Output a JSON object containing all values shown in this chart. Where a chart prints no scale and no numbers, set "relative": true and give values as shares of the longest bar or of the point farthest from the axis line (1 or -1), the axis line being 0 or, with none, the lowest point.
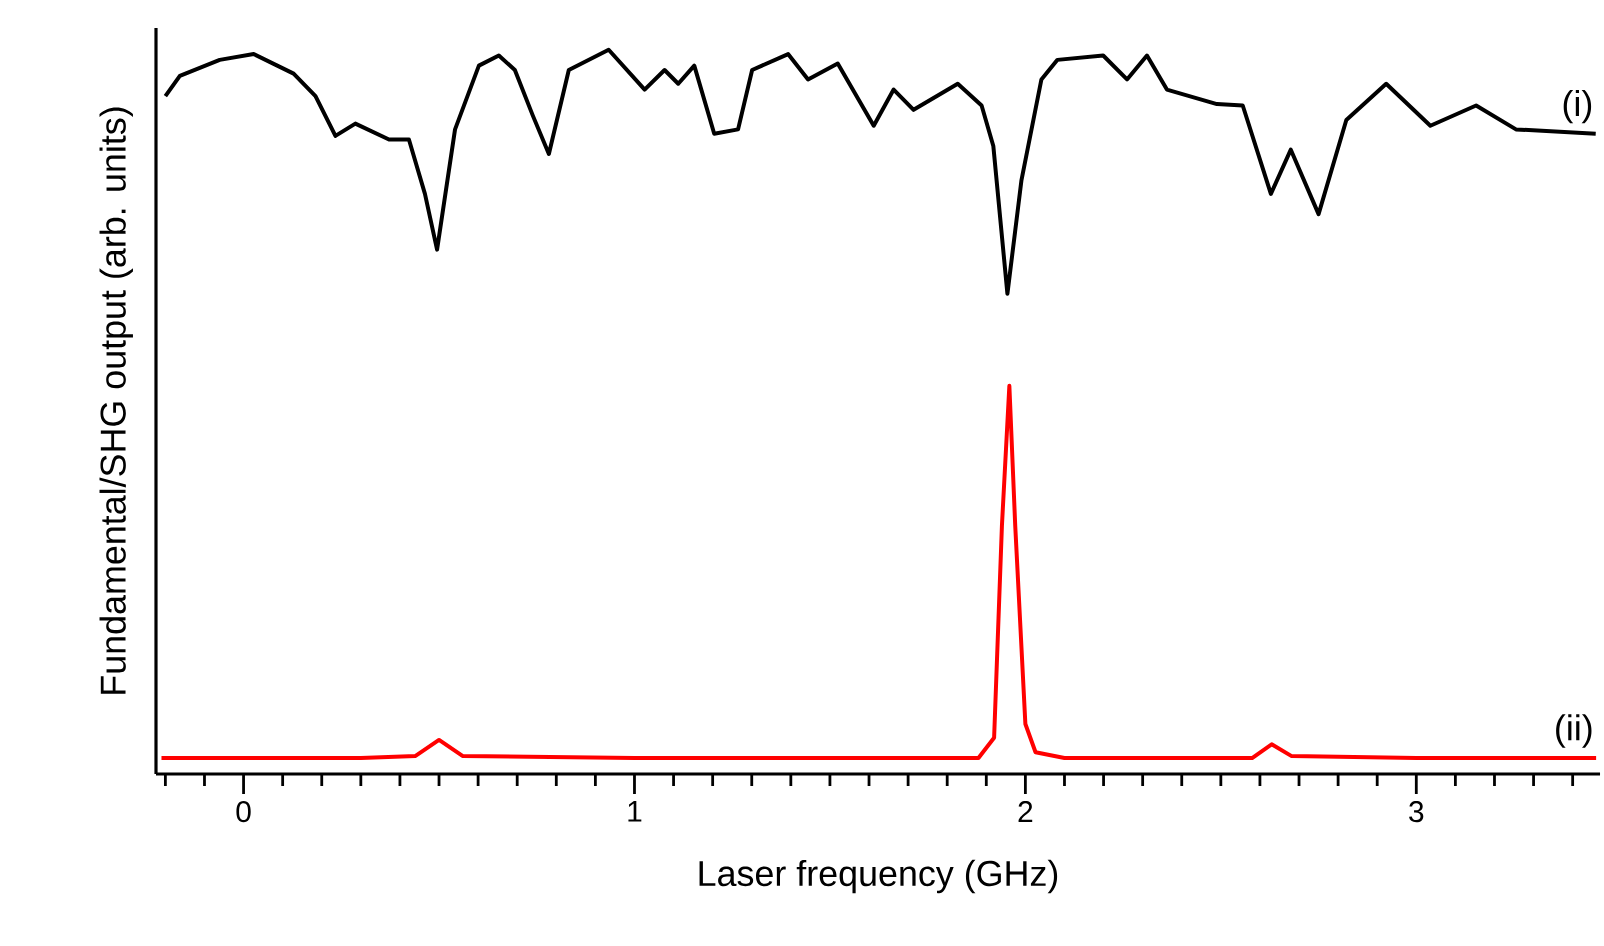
{
  "chart_data": {
    "type": "line",
    "relative": true,
    "xlabel": "Laser frequency (GHz)",
    "ylabel": "Fundamental/SHG output (arb. units)",
    "xlim": [
      -0.224,
      3.47
    ],
    "xticks": [
      {
        "value": -0.2,
        "label": null
      },
      {
        "value": -0.1,
        "label": null
      },
      0,
      {
        "value": 0.1,
        "label": null
      },
      {
        "value": 0.2,
        "label": null
      },
      {
        "value": 0.3,
        "label": null
      },
      {
        "value": 0.4,
        "label": null
      },
      {
        "value": 0.5,
        "label": null
      },
      {
        "value": 0.6,
        "label": null
      },
      {
        "value": 0.7,
        "label": null
      },
      {
        "value": 0.8,
        "label": null
      },
      {
        "value": 0.9,
        "label": null
      },
      1,
      {
        "value": 1.1,
        "label": null
      },
      {
        "value": 1.2,
        "label": null
      },
      {
        "value": 1.3,
        "label": null
      },
      {
        "value": 1.4,
        "label": null
      },
      {
        "value": 1.5,
        "label": null
      },
      {
        "value": 1.6,
        "label": null
      },
      {
        "value": 1.7,
        "label": null
      },
      {
        "value": 1.8,
        "label": null
      },
      {
        "value": 1.9,
        "label": null
      },
      2,
      {
        "value": 2.1,
        "label": null
      },
      {
        "value": 2.2,
        "label": null
      },
      {
        "value": 2.3,
        "label": null
      },
      {
        "value": 2.4,
        "label": null
      },
      {
        "value": 2.5,
        "label": null
      },
      {
        "value": 2.6,
        "label": null
      },
      {
        "value": 2.7,
        "label": null
      },
      {
        "value": 2.8,
        "label": null
      },
      {
        "value": 2.9,
        "label": null
      },
      3,
      {
        "value": 3.1,
        "label": null
      },
      {
        "value": 3.2,
        "label": null
      },
      {
        "value": 3.3,
        "label": null
      },
      {
        "value": 3.4,
        "label": null
      }
    ],
    "series": [
      {
        "name": "(i)",
        "color": "#000000",
        "x": [
          -0.2,
          -0.163,
          -0.061,
          0.026,
          0.128,
          0.184,
          0.235,
          0.286,
          0.372,
          0.423,
          0.464,
          0.495,
          0.541,
          0.602,
          0.653,
          0.694,
          0.74,
          0.781,
          0.832,
          0.934,
          1.026,
          1.077,
          1.112,
          1.153,
          1.204,
          1.265,
          1.301,
          1.393,
          1.444,
          1.52,
          1.612,
          1.663,
          1.714,
          1.827,
          1.888,
          1.918,
          1.954,
          1.99,
          2.041,
          2.082,
          2.199,
          2.26,
          2.311,
          2.362,
          2.49,
          2.556,
          2.628,
          2.679,
          2.75,
          2.821,
          2.923,
          3.036,
          3.153,
          3.255,
          3.459
        ],
        "values": [
          0.936,
          0.964,
          0.986,
          0.994,
          0.967,
          0.936,
          0.881,
          0.898,
          0.876,
          0.876,
          0.801,
          0.724,
          0.89,
          0.978,
          0.992,
          0.972,
          0.909,
          0.856,
          0.972,
          1,
          0.945,
          0.972,
          0.953,
          0.978,
          0.884,
          0.89,
          0.972,
          0.994,
          0.959,
          0.981,
          0.895,
          0.945,
          0.917,
          0.953,
          0.923,
          0.867,
          0.663,
          0.82,
          0.959,
          0.986,
          0.992,
          0.959,
          0.992,
          0.945,
          0.925,
          0.923,
          0.801,
          0.862,
          0.773,
          0.903,
          0.953,
          0.895,
          0.923,
          0.89,
          0.884
        ]
      },
      {
        "name": "(ii)",
        "color": "#ff0000",
        "x": [
          -0.21,
          0.3,
          0.44,
          0.5,
          0.56,
          1.0,
          1.5,
          1.88,
          1.92,
          1.94,
          1.959,
          1.974,
          2.0,
          2.026,
          2.1,
          2.58,
          2.63,
          2.68,
          3.0,
          3.46
        ],
        "values": [
          0.022,
          0.022,
          0.025,
          0.047,
          0.025,
          0.022,
          0.022,
          0.022,
          0.05,
          0.343,
          0.536,
          0.343,
          0.069,
          0.03,
          0.022,
          0.022,
          0.041,
          0.025,
          0.022,
          0.022
        ]
      }
    ]
  }
}
